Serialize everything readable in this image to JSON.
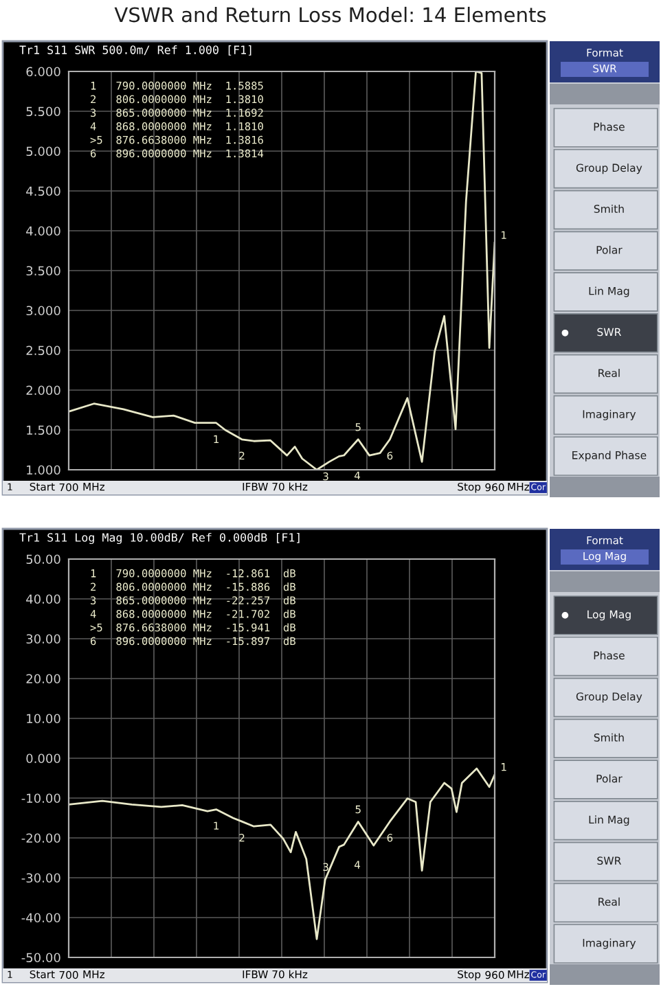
{
  "chart_data": [
    {
      "type": "line",
      "title": "VSWR and Return Loss Model: 14 Elements",
      "subtitle": "Tr1 S11 SWR 500.0m/ Ref 1.000 [F1]",
      "series": [
        {
          "color": "#e8e8c8",
          "x": [
            700,
            715.4,
            733.4,
            751.3,
            764,
            777,
            790,
            795.5,
            805.7,
            813,
            823,
            833.2,
            838,
            842.5,
            851.4,
            859,
            865,
            868,
            876.66,
            883.5,
            890,
            896,
            906.7,
            915.6,
            923.3,
            929.2,
            936.1,
            942.5,
            948.5,
            952,
            956.7,
            960
          ],
          "values": [
            1.73,
            1.83,
            1.76,
            1.66,
            1.68,
            1.59,
            1.5885,
            1.5,
            1.381,
            1.36,
            1.37,
            1.18,
            1.29,
            1.14,
            1.0,
            1.1,
            1.1692,
            1.181,
            1.3816,
            1.18,
            1.21,
            1.3814,
            1.9,
            1.1,
            2.48,
            2.93,
            1.51,
            4.37,
            6.0,
            5.98,
            2.53,
            3.85
          ]
        }
      ],
      "xlim": [
        700,
        960
      ],
      "xticks": [
        700,
        {
          "value": 726,
          "label": null
        },
        {
          "value": 752,
          "label": null
        },
        {
          "value": 778,
          "label": null
        },
        {
          "value": 804,
          "label": null
        },
        {
          "value": 830,
          "label": null
        },
        {
          "value": 856,
          "label": null
        },
        {
          "value": 882,
          "label": null
        },
        {
          "value": 908,
          "label": null
        },
        {
          "value": 934,
          "label": null
        },
        960
      ],
      "ylim": [
        1.0,
        6.0
      ],
      "yticks": [
        {
          "value": 1.0,
          "label": "1.000"
        },
        {
          "value": 1.5,
          "label": "1.500"
        },
        {
          "value": 2.0,
          "label": "2.000"
        },
        {
          "value": 2.5,
          "label": "2.500"
        },
        {
          "value": 3.0,
          "label": "3.000"
        },
        {
          "value": 3.5,
          "label": "3.500"
        },
        {
          "value": 4.0,
          "label": "4.000"
        },
        {
          "value": 4.5,
          "label": "4.500"
        },
        {
          "value": 5.0,
          "label": "5.000"
        },
        {
          "value": 5.5,
          "label": "5.500"
        },
        {
          "value": 6.0,
          "label": "6.000"
        }
      ],
      "grid": true,
      "line_style": "solid",
      "annotations": [
        "1   790.0000000 MHz  1.5885",
        "2   806.0000000 MHz  1.3810",
        "3   865.0000000 MHz  1.1692",
        "4   868.0000000 MHz  1.1810",
        ">5  876.6638000 MHz  1.3816",
        "6   896.0000000 MHz  1.3814",
        "1",
        "Start",
        "MHz",
        "IFBW 70 kHz",
        "Stop",
        "MHz",
        "Cor",
        {
          "text": "1",
          "x": 790,
          "y": 1.5885
        },
        {
          "text": "2",
          "x": 805.7,
          "y": 1.381
        },
        {
          "text": "3",
          "x": 865,
          "y": 1.1692
        },
        {
          "text": "4",
          "x": 868,
          "y": 1.181
        },
        {
          "text": "5",
          "x": 876.66,
          "y": 1.3816
        },
        {
          "text": "6",
          "x": 896,
          "y": 1.3814
        },
        {
          "text": "1",
          "x": 960,
          "y": 3.85
        }
      ]
    },
    {
      "type": "other",
      "title": "Format",
      "subtitle": "SWR",
      "categories": [
        "Phase",
        "Group Delay",
        "Smith",
        "Polar",
        "Lin Mag",
        "SWR",
        "Real",
        "Imaginary",
        "Expand Phase"
      ],
      "colors": [
        "#d8dce4",
        "#d8dce4",
        "#d8dce4",
        "#d8dce4",
        "#d8dce4",
        "#3c4048",
        "#d8dce4",
        "#d8dce4",
        "#d8dce4"
      ]
    },
    {
      "type": "line",
      "subtitle": "Tr1 S11 Log Mag 10.00dB/ Ref 0.000dB [F1]",
      "series": [
        {
          "color": "#e8e8c8",
          "x": [
            700,
            720.5,
            738.5,
            756.5,
            769.3,
            784.7,
            790,
            800.3,
            805.7,
            813,
            823.2,
            830.9,
            835.5,
            838.6,
            845,
            851.4,
            856.5,
            865,
            868,
            876.66,
            886.1,
            896,
            906.7,
            911.8,
            915.6,
            920.7,
            929.2,
            933.6,
            936.7,
            940,
            949,
            956.7,
            960
          ],
          "values": [
            -11.6,
            -10.7,
            -11.6,
            -12.2,
            -11.8,
            -13.3,
            -12.861,
            -15.0,
            -15.886,
            -17.1,
            -16.7,
            -20.2,
            -23.6,
            -18.5,
            -25.3,
            -45.4,
            -30.5,
            -22.257,
            -21.702,
            -15.941,
            -21.9,
            -15.897,
            -10.1,
            -11.0,
            -28.2,
            -11.0,
            -6.2,
            -7.6,
            -13.5,
            -6.2,
            -2.6,
            -7.2,
            -4.1
          ]
        }
      ],
      "xlim": [
        700,
        960
      ],
      "xticks": [
        700,
        {
          "value": 726,
          "label": null
        },
        {
          "value": 752,
          "label": null
        },
        {
          "value": 778,
          "label": null
        },
        {
          "value": 804,
          "label": null
        },
        {
          "value": 830,
          "label": null
        },
        {
          "value": 856,
          "label": null
        },
        {
          "value": 882,
          "label": null
        },
        {
          "value": 908,
          "label": null
        },
        {
          "value": 934,
          "label": null
        },
        960
      ],
      "ylim": [
        -50,
        50
      ],
      "yticks": [
        {
          "value": -50,
          "label": "-50.00"
        },
        {
          "value": -40,
          "label": "-40.00"
        },
        {
          "value": -30,
          "label": "-30.00"
        },
        {
          "value": -20,
          "label": "-20.00"
        },
        {
          "value": -10,
          "label": "-10.00"
        },
        {
          "value": 0,
          "label": "0.000"
        },
        {
          "value": 10,
          "label": "10.00"
        },
        {
          "value": 20,
          "label": "20.00"
        },
        {
          "value": 30,
          "label": "30.00"
        },
        {
          "value": 40,
          "label": "40.00"
        },
        {
          "value": 50,
          "label": "50.00"
        }
      ],
      "grid": true,
      "line_style": "solid",
      "annotations": [
        "1   790.0000000 MHz  -12.861  dB",
        "2   806.0000000 MHz  -15.886  dB",
        "3   865.0000000 MHz  -22.257  dB",
        "4   868.0000000 MHz  -21.702  dB",
        ">5  876.6638000 MHz  -15.941  dB",
        "6   896.0000000 MHz  -15.897  dB",
        "1",
        "Start",
        "MHz",
        "IFBW 70 kHz",
        "Stop",
        "MHz",
        "Cor",
        {
          "text": "1",
          "x": 790,
          "y": -12.861
        },
        {
          "text": "2",
          "x": 805.7,
          "y": -15.886
        },
        {
          "text": "3",
          "x": 865,
          "y": -22.257
        },
        {
          "text": "4",
          "x": 868,
          "y": -21.702
        },
        {
          "text": "5",
          "x": 876.66,
          "y": -15.941
        },
        {
          "text": "6",
          "x": 896,
          "y": -15.897
        },
        {
          "text": "1",
          "x": 960,
          "y": -4.1
        }
      ]
    },
    {
      "type": "other",
      "title": "Format",
      "subtitle": "Log Mag",
      "categories": [
        "Log Mag",
        "Phase",
        "Group Delay",
        "Smith",
        "Polar",
        "Lin Mag",
        "SWR",
        "Real",
        "Imaginary"
      ],
      "colors": [
        "#3c4048",
        "#d8dce4",
        "#d8dce4",
        "#d8dce4",
        "#d8dce4",
        "#d8dce4",
        "#d8dce4",
        "#d8dce4",
        "#d8dce4"
      ]
    }
  ]
}
